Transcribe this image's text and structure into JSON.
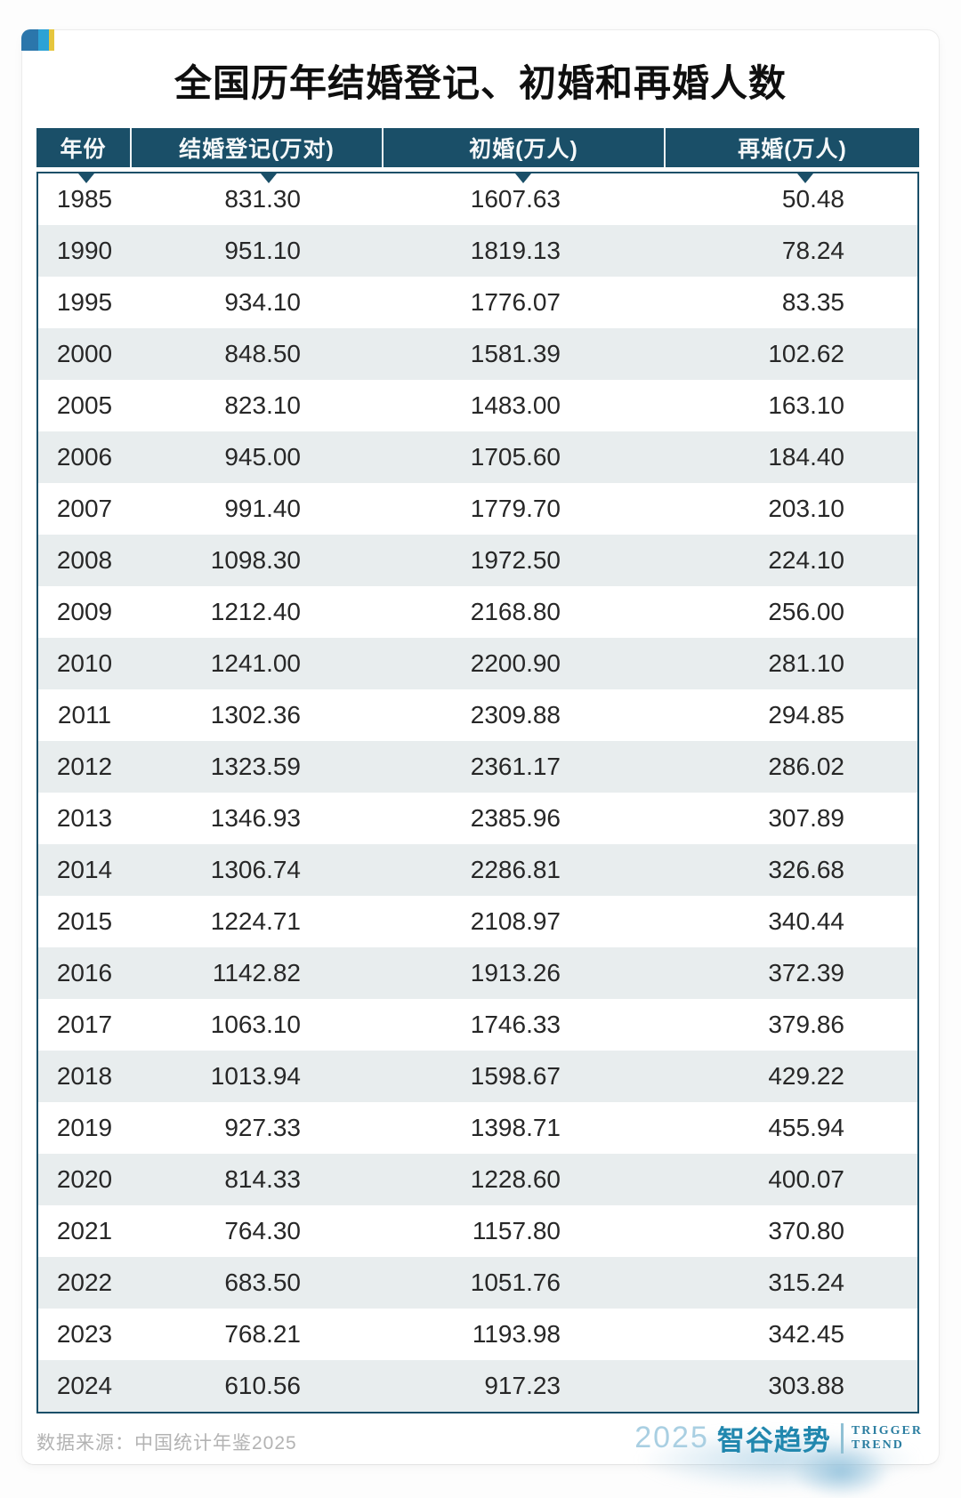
{
  "title": "全国历年结婚登记、初婚和再婚人数",
  "chart_data": {
    "type": "table",
    "title": "全国历年结婚登记、初婚和再婚人数",
    "columns": [
      "年份",
      "结婚登记(万对)",
      "初婚(万人)",
      "再婚(万人)"
    ],
    "rows": [
      [
        "1985",
        "831.30",
        "1607.63",
        "50.48"
      ],
      [
        "1990",
        "951.10",
        "1819.13",
        "78.24"
      ],
      [
        "1995",
        "934.10",
        "1776.07",
        "83.35"
      ],
      [
        "2000",
        "848.50",
        "1581.39",
        "102.62"
      ],
      [
        "2005",
        "823.10",
        "1483.00",
        "163.10"
      ],
      [
        "2006",
        "945.00",
        "1705.60",
        "184.40"
      ],
      [
        "2007",
        "991.40",
        "1779.70",
        "203.10"
      ],
      [
        "2008",
        "1098.30",
        "1972.50",
        "224.10"
      ],
      [
        "2009",
        "1212.40",
        "2168.80",
        "256.00"
      ],
      [
        "2010",
        "1241.00",
        "2200.90",
        "281.10"
      ],
      [
        "2011",
        "1302.36",
        "2309.88",
        "294.85"
      ],
      [
        "2012",
        "1323.59",
        "2361.17",
        "286.02"
      ],
      [
        "2013",
        "1346.93",
        "2385.96",
        "307.89"
      ],
      [
        "2014",
        "1306.74",
        "2286.81",
        "326.68"
      ],
      [
        "2015",
        "1224.71",
        "2108.97",
        "340.44"
      ],
      [
        "2016",
        "1142.82",
        "1913.26",
        "372.39"
      ],
      [
        "2017",
        "1063.10",
        "1746.33",
        "379.86"
      ],
      [
        "2018",
        "1013.94",
        "1598.67",
        "429.22"
      ],
      [
        "2019",
        "927.33",
        "1398.71",
        "455.94"
      ],
      [
        "2020",
        "814.33",
        "1228.60",
        "400.07"
      ],
      [
        "2021",
        "764.30",
        "1157.80",
        "370.80"
      ],
      [
        "2022",
        "683.50",
        "1051.76",
        "315.24"
      ],
      [
        "2023",
        "768.21",
        "1193.98",
        "342.45"
      ],
      [
        "2024",
        "610.56",
        "917.23",
        "303.88"
      ]
    ]
  },
  "footer": {
    "source": "数据来源：中国统计年鉴2025",
    "logo": {
      "year": "2025",
      "brand": "智谷趋势",
      "tagline_line1": "TRIGGER",
      "tagline_line2": "TREND"
    }
  },
  "colors": {
    "header_bg": "#1a4f68",
    "row_alt_bg": "#e8edee",
    "table_border": "#1a4f68",
    "title_color": "#0f0f0f",
    "text_color": "#272727",
    "source_gray": "#b3b3b3",
    "logo_teal": "#2187ae",
    "logo_year_blue": "#a9cfe2",
    "icon_blue": "#2b76ab",
    "icon_light_blue": "#2ca2d5",
    "icon_yellow": "#e6c63d"
  }
}
